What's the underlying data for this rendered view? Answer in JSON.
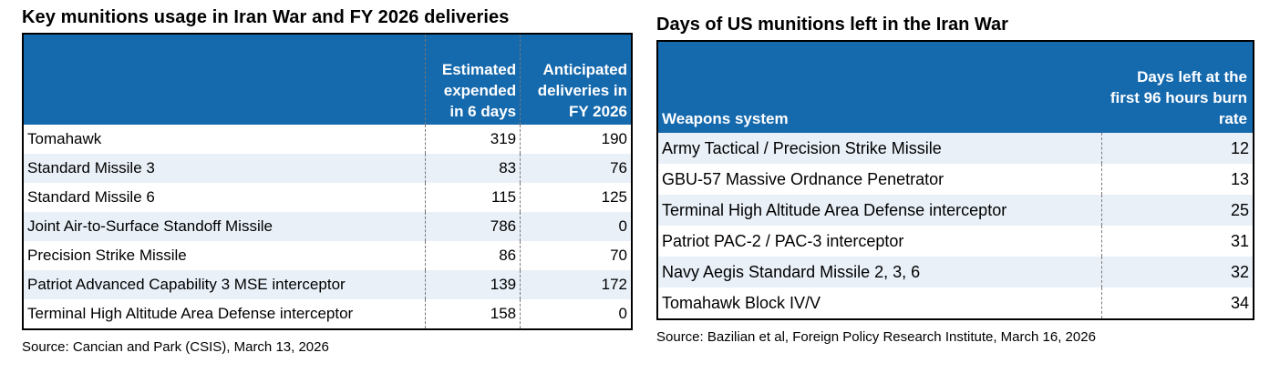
{
  "left": {
    "title": "Key munitions usage in Iran War and FY 2026 deliveries",
    "headers": {
      "col1": "",
      "col2": "Estimated expended in 6 days",
      "col3": "Anticipated deliveries in FY 2026"
    },
    "rows": [
      {
        "name": "Tomahawk",
        "expended": "319",
        "deliveries": "190"
      },
      {
        "name": "Standard Missile 3",
        "expended": "83",
        "deliveries": "76"
      },
      {
        "name": "Standard Missile 6",
        "expended": "115",
        "deliveries": "125"
      },
      {
        "name": "Joint Air-to-Surface Standoff Missile",
        "expended": "786",
        "deliveries": "0"
      },
      {
        "name": "Precision Strike Missile",
        "expended": "86",
        "deliveries": "70"
      },
      {
        "name": "Patriot Advanced Capability 3 MSE interceptor",
        "expended": "139",
        "deliveries": "172"
      },
      {
        "name": "Terminal High Altitude Area Defense interceptor",
        "expended": "158",
        "deliveries": "0"
      }
    ],
    "source": "Source: Cancian and Park (CSIS), March 13, 2026"
  },
  "right": {
    "title": "Days of US munitions left in the Iran War",
    "headers": {
      "col1": "Weapons system",
      "col2": "Days left at the first 96 hours burn rate"
    },
    "rows": [
      {
        "name": "Army Tactical / Precision Strike Missile",
        "days": "12"
      },
      {
        "name": "GBU-57 Massive Ordnance Penetrator",
        "days": "13"
      },
      {
        "name": "Terminal High Altitude Area Defense interceptor",
        "days": "25"
      },
      {
        "name": "Patriot PAC-2 / PAC-3 interceptor",
        "days": "31"
      },
      {
        "name": "Navy Aegis Standard Missile 2, 3, 6",
        "days": "32"
      },
      {
        "name": "Tomahawk Block IV/V",
        "days": "34"
      }
    ],
    "source": "Source: Bazilian et al, Foreign Policy Research Institute, March 16, 2026"
  },
  "colors": {
    "header_bg": "#1569ad",
    "header_text": "#ffffff",
    "alt_row": "#e9f0f8"
  }
}
